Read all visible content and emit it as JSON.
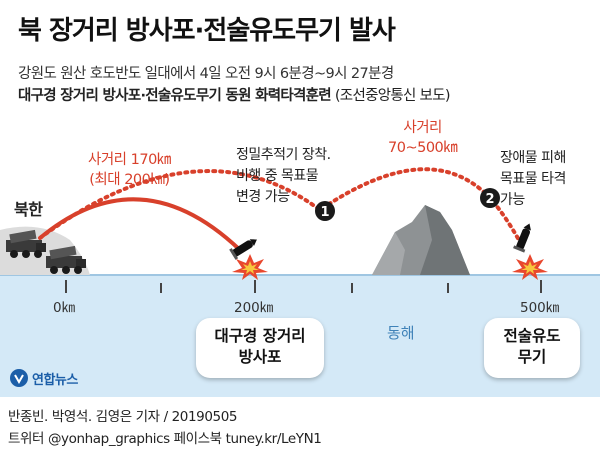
{
  "header": {
    "title": "북 장거리 방사포·전술유도무기 발사",
    "subtitle_1": "강원도 원산 호도반도 일대에서 4일 오전 9시 6분경~9시 27분경",
    "subtitle_2_bold": "대구경 장거리 방사포·전술유도무기 동원 화력타격훈련",
    "subtitle_2_note": "(조선중앙통신 보도)"
  },
  "map": {
    "north_korea_label": "북한",
    "range_1": {
      "line1": "사거리 170㎞",
      "line2": "(최대 200㎞)"
    },
    "range_2": {
      "line1": "사거리",
      "line2": "70~500㎞"
    },
    "note_1": {
      "line1": "정밀추적기 장착.",
      "line2": "비행 중 목표물",
      "line3": "변경 가능"
    },
    "note_2": {
      "line1": "장애물 피해",
      "line2": "목표물 타격",
      "line3": "가능"
    },
    "marker_1": "1",
    "marker_2": "2",
    "ticks": [
      "0㎞",
      "200㎞",
      "500㎞"
    ],
    "sea_label": "동해",
    "weapon_1": {
      "line1": "대구경 장거리",
      "line2": "방사포"
    },
    "weapon_2": {
      "line1": "전술유도",
      "line2": "무기"
    }
  },
  "colors": {
    "trajectory": "#d8402b",
    "sea": "#d4e9f7",
    "sea_edge": "#9fc6e2",
    "mountain": "#8e9294",
    "marker": "#1a1a1a"
  },
  "icons": [
    "launcher-truck-icon",
    "missile-icon",
    "explosion-icon",
    "mountain-icon",
    "yonhap-logo-icon"
  ],
  "footer": {
    "logo_text": "연합뉴스",
    "credit": "반종빈. 박영석. 김영은 기자 / 20190505",
    "credit_2": "트위터 @yonhap_graphics  페이스북 tuney.kr/LeYN1"
  }
}
